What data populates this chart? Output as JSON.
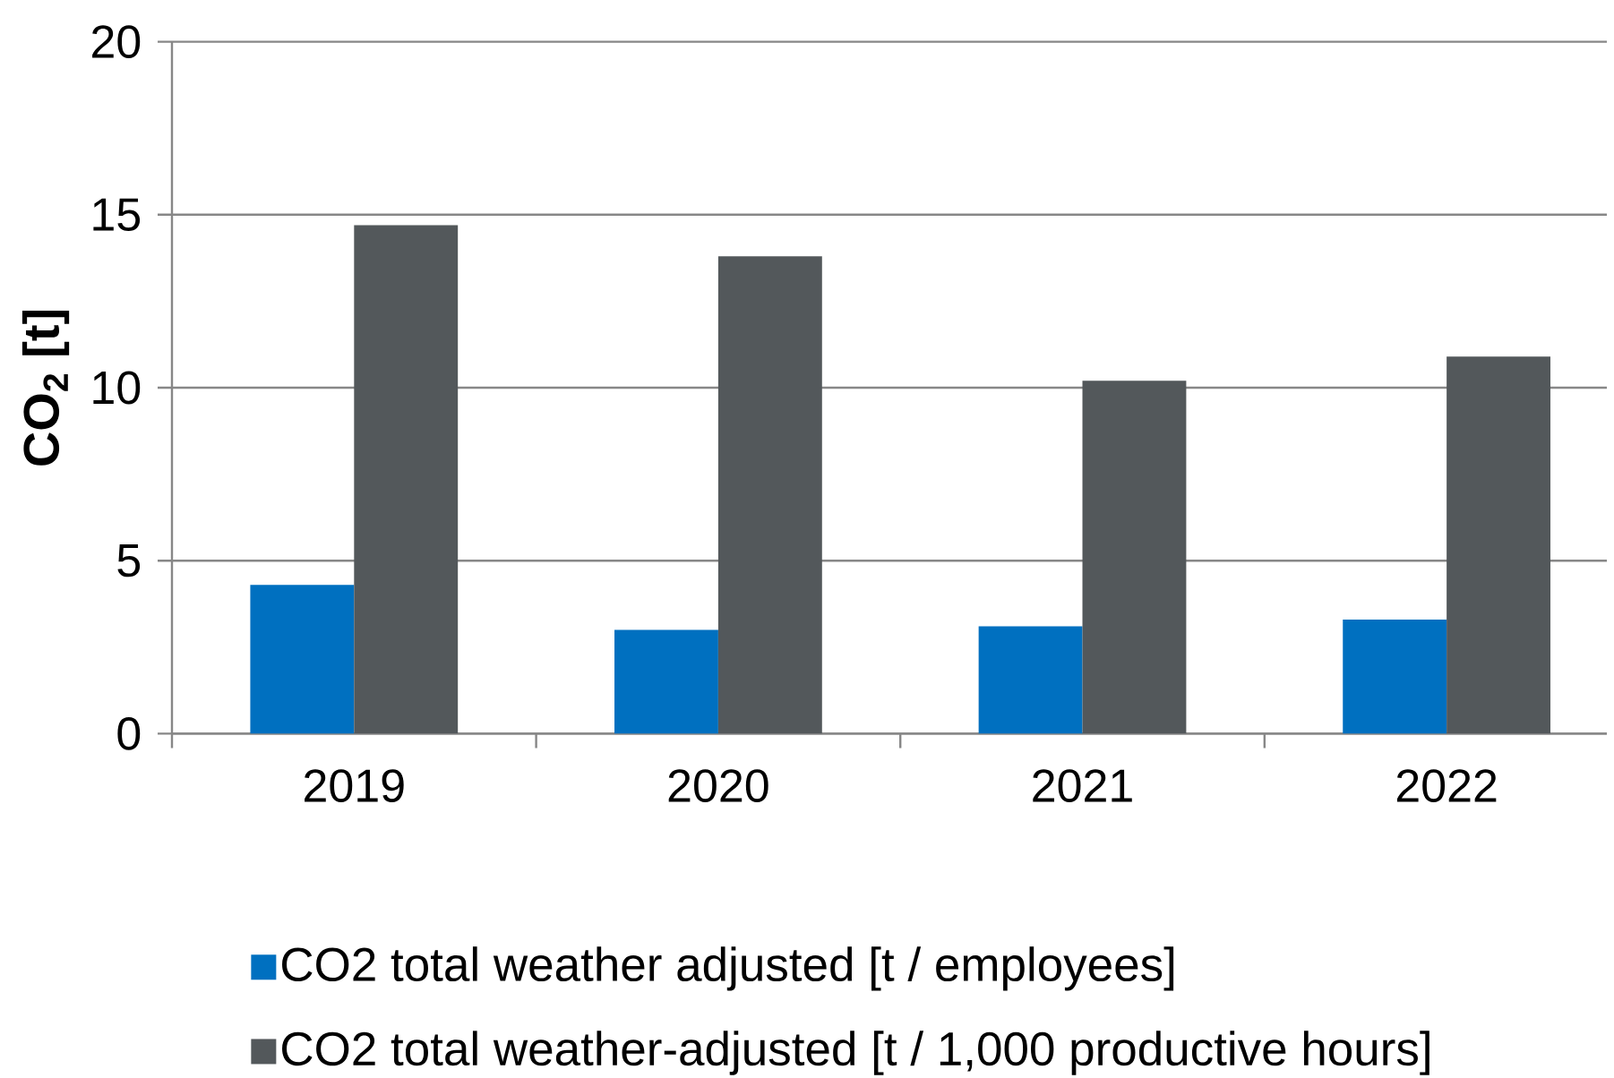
{
  "chart_data": {
    "type": "bar",
    "ylabel": "CO$_{2}$ [t]",
    "categories": [
      "2019",
      "2020",
      "2021",
      "2022"
    ],
    "series": [
      {
        "name": "CO2 total weather adjusted [t / employees]",
        "color": "#0070c0",
        "values": [
          4.3,
          3.0,
          3.1,
          3.3
        ]
      },
      {
        "name": "CO2 total weather-adjusted [t / 1,000 productive hours]",
        "color": "#53585b",
        "values": [
          14.7,
          13.8,
          10.2,
          10.9
        ]
      }
    ],
    "ylim": [
      0,
      20
    ],
    "yticks": [
      0,
      5,
      10,
      15,
      20
    ],
    "grid": "y",
    "legend": "bottom"
  }
}
